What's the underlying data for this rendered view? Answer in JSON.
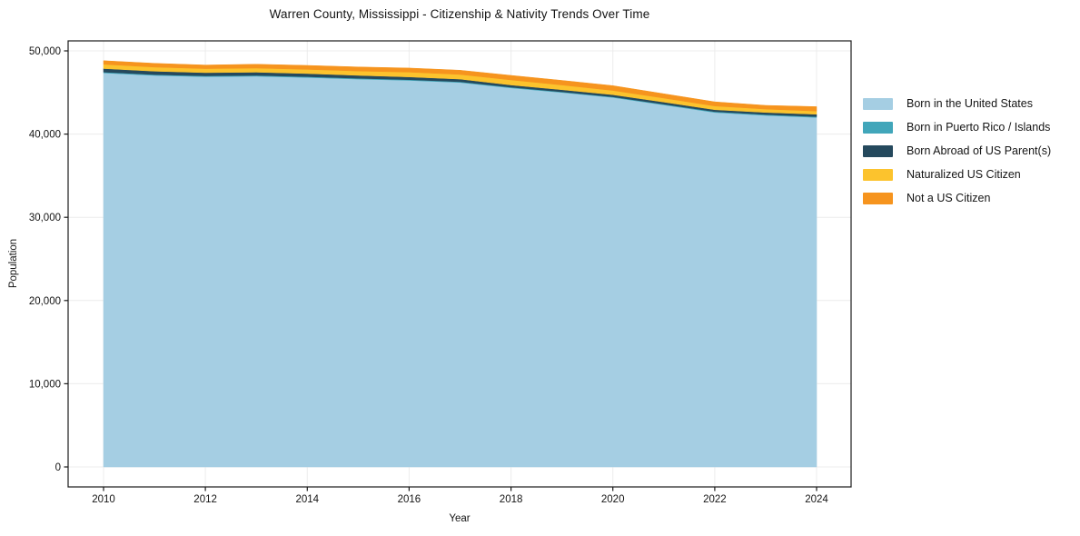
{
  "title": "Warren County, Mississippi - Citizenship & Nativity Trends Over Time",
  "chart_data": {
    "type": "area",
    "stacked": true,
    "title": "Warren County, Mississippi - Citizenship & Nativity Trends Over Time",
    "xlabel": "Year",
    "ylabel": "Population",
    "grid": true,
    "legend_position": "right-outside",
    "x": [
      2010,
      2011,
      2012,
      2013,
      2014,
      2015,
      2016,
      2017,
      2018,
      2019,
      2020,
      2021,
      2022,
      2023,
      2024
    ],
    "series": [
      {
        "name": "Born in the United States",
        "color": "#a5cee3",
        "values": [
          47350,
          47050,
          46900,
          46950,
          46800,
          46600,
          46450,
          46200,
          45550,
          45000,
          44400,
          43500,
          42600,
          42250,
          42000
        ]
      },
      {
        "name": "Born in Puerto Rico / Islands",
        "color": "#41a6ba",
        "values": [
          100,
          100,
          100,
          100,
          100,
          100,
          90,
          90,
          80,
          80,
          80,
          90,
          100,
          100,
          100
        ]
      },
      {
        "name": "Born Abroad of US Parent(s)",
        "color": "#25495d",
        "values": [
          420,
          400,
          380,
          380,
          370,
          350,
          330,
          310,
          260,
          250,
          250,
          250,
          230,
          250,
          280
        ]
      },
      {
        "name": "Naturalized US Citizen",
        "color": "#fcc32d",
        "values": [
          510,
          500,
          480,
          500,
          500,
          530,
          570,
          560,
          620,
          560,
          510,
          480,
          440,
          400,
          380
        ]
      },
      {
        "name": "Not a US Citizen",
        "color": "#f6941e",
        "values": [
          440,
          450,
          440,
          470,
          480,
          490,
          500,
          520,
          540,
          560,
          580,
          530,
          510,
          450,
          540
        ]
      }
    ],
    "xticks": [
      2010,
      2012,
      2014,
      2016,
      2018,
      2020,
      2022,
      2024
    ],
    "xtick_labels": [
      "2010",
      "2012",
      "2014",
      "2016",
      "2018",
      "2020",
      "2022",
      "2024"
    ],
    "yticks": [
      0,
      10000,
      20000,
      30000,
      40000,
      50000
    ],
    "ytick_labels": [
      "0",
      "10,000",
      "20,000",
      "30,000",
      "40,000",
      "50,000"
    ],
    "ylim": [
      -2400,
      51300
    ],
    "xlim": [
      2009.3,
      2024.7
    ],
    "colors": {
      "grid": "#ececec",
      "axis": "#1a1a1a",
      "background": "#ffffff"
    }
  }
}
